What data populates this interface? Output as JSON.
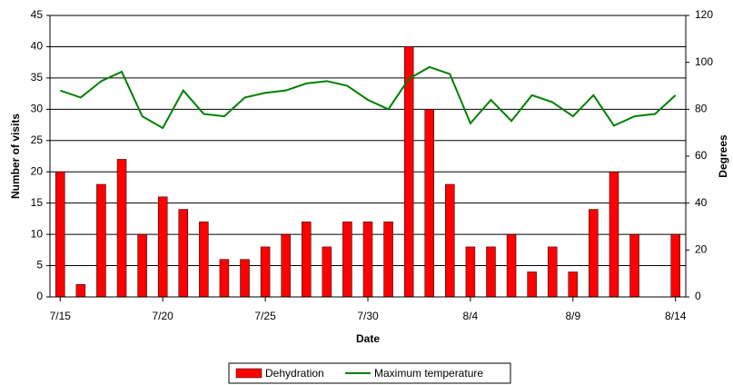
{
  "chart_data": {
    "type": "bar_line",
    "x_label": "Date",
    "y_label": "Number of visits",
    "y2_label": "Degrees",
    "categories": [
      "7/15",
      null,
      null,
      null,
      null,
      "7/20",
      null,
      null,
      null,
      null,
      "7/25",
      null,
      null,
      null,
      null,
      "7/30",
      null,
      null,
      null,
      null,
      "8/4",
      null,
      null,
      null,
      null,
      "8/9",
      null,
      null,
      null,
      null,
      "8/14"
    ],
    "series": [
      {
        "name": "Dehydration",
        "color": "#ff0000",
        "type": "bar",
        "values": [
          20,
          2,
          18,
          22,
          10,
          16,
          14,
          12,
          6,
          6,
          8,
          10,
          12,
          8,
          12,
          12,
          12,
          40,
          30,
          18,
          8,
          8,
          10,
          4,
          8,
          4,
          14,
          20,
          10,
          null,
          10
        ]
      },
      {
        "name": "Maximum temperature",
        "color": "#008000",
        "type": "line",
        "axis": "y2",
        "values": [
          88,
          85,
          92,
          96,
          77,
          72,
          88,
          78,
          77,
          85,
          87,
          88,
          91,
          92,
          90,
          84,
          80,
          93,
          98,
          95,
          74,
          84,
          75,
          86,
          83,
          77,
          86,
          73,
          77,
          78,
          86
        ]
      }
    ],
    "ylim": [
      0,
      45
    ],
    "yticks": [
      0,
      5,
      10,
      15,
      20,
      25,
      30,
      35,
      40,
      45
    ],
    "y2lim": [
      0,
      120
    ],
    "y2ticks": [
      0,
      20,
      40,
      60,
      80,
      100,
      120
    ],
    "grid": true,
    "legend": "bottom"
  }
}
